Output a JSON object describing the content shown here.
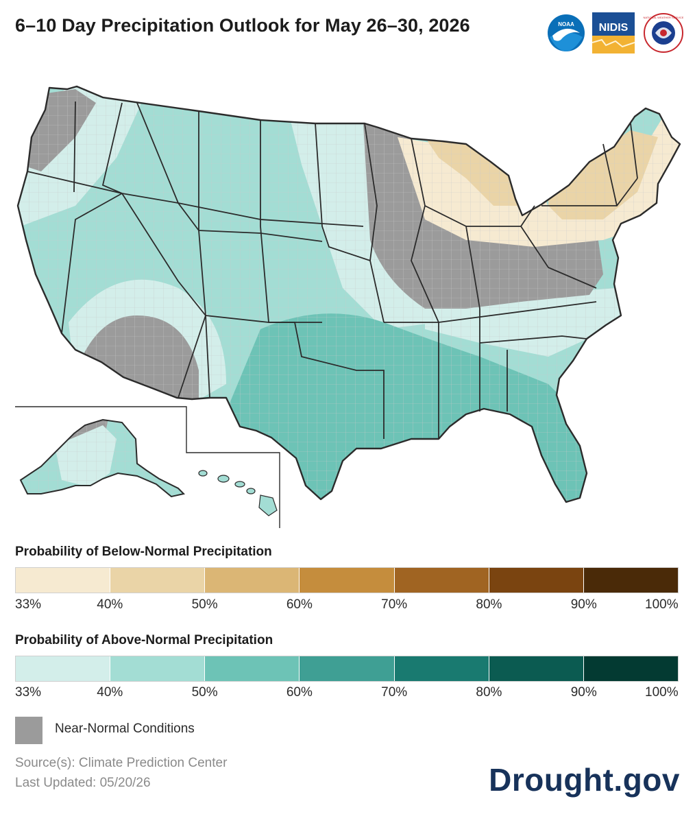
{
  "title": "6–10 Day Precipitation Outlook for May 26–30, 2026",
  "logos": [
    {
      "name": "NOAA",
      "text": "NOAA",
      "color": "#0a6fb8"
    },
    {
      "name": "NIDIS",
      "text": "NIDIS",
      "color": "#1b4f95"
    },
    {
      "name": "National Weather Service",
      "text": "NATIONAL WEATHER SERVICE",
      "color": "#1b3f8f"
    }
  ],
  "colors": {
    "below": [
      "#f6ead1",
      "#ead4a7",
      "#dbb675",
      "#c58d3d",
      "#a06422",
      "#7a4410",
      "#4a2a08"
    ],
    "above": [
      "#d3eeea",
      "#a3ddd4",
      "#6dc3b6",
      "#3f9f94",
      "#197a70",
      "#0b5b51",
      "#033a32"
    ],
    "near_normal": "#9b9b9b",
    "state_border": "#2b2b2b",
    "county_line": "#c9c9c9"
  },
  "legend": {
    "below": {
      "title": "Probability of Below-Normal Precipitation",
      "ticks": [
        "33%",
        "40%",
        "50%",
        "60%",
        "70%",
        "80%",
        "90%",
        "100%"
      ]
    },
    "above": {
      "title": "Probability of Above-Normal Precipitation",
      "ticks": [
        "33%",
        "40%",
        "50%",
        "60%",
        "70%",
        "80%",
        "90%",
        "100%"
      ]
    },
    "near_normal": "Near-Normal Conditions"
  },
  "source": "Source(s): Climate Prediction Center",
  "updated": "Last Updated: 05/20/26",
  "brand": "Drought.gov"
}
